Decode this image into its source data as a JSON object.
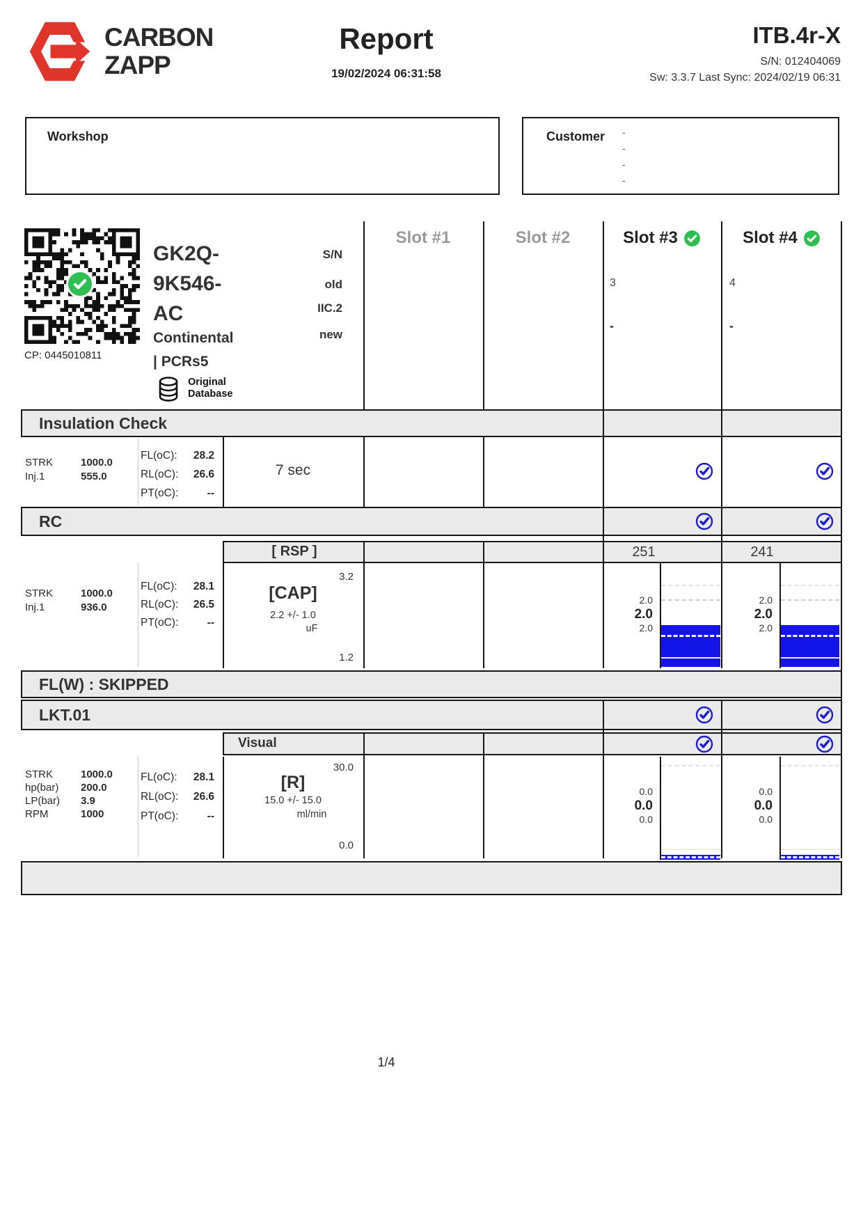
{
  "header": {
    "brand": [
      "CARBON",
      "ZAPP"
    ],
    "title": "Report",
    "datetime": "19/02/2024 06:31:58",
    "device": "ITB.4r-X",
    "serial": "S/N: 012404069",
    "sync": "Sw: 3.3.7 Last Sync: 2024/02/19 06:31"
  },
  "boxes": {
    "workshop_label": "Workshop",
    "customer_label": "Customer",
    "customer_dashes": [
      "-",
      "-",
      "-",
      "-"
    ]
  },
  "injector": {
    "cp": "CP: 0445010811",
    "part": [
      "GK2Q-",
      "9K546-",
      "AC"
    ],
    "brand": "Continental",
    "series": "| PCRs5",
    "db": [
      "Original",
      "Database"
    ],
    "labels": [
      "S/N",
      "old",
      "IIC.2",
      "new"
    ]
  },
  "slots": [
    {
      "label": "Slot #1",
      "active": false,
      "sn": "",
      "new": ""
    },
    {
      "label": "Slot #2",
      "active": false,
      "sn": "",
      "new": ""
    },
    {
      "label": "Slot #3",
      "active": true,
      "sn": "3",
      "new": "-"
    },
    {
      "label": "Slot #4",
      "active": true,
      "sn": "4",
      "new": "-"
    }
  ],
  "insulation": {
    "title": "Insulation Check",
    "params": [
      {
        "k": "STRK",
        "v": "1000.0"
      },
      {
        "k": "Inj.1",
        "v": "555.0"
      }
    ],
    "temps": [
      {
        "k": "FL(oC):",
        "v": "28.2"
      },
      {
        "k": "RL(oC):",
        "v": "26.6"
      },
      {
        "k": "PT(oC):",
        "v": "--"
      }
    ],
    "result": "7 sec"
  },
  "rc": {
    "title": "RC",
    "sub": "[ RSP ]",
    "rsp": {
      "slot3": "251",
      "slot4": "241"
    },
    "params": [
      {
        "k": "STRK",
        "v": "1000.0"
      },
      {
        "k": "Inj.1",
        "v": "936.0"
      }
    ],
    "temps": [
      {
        "k": "FL(oC):",
        "v": "28.1"
      },
      {
        "k": "RL(oC):",
        "v": "26.5"
      },
      {
        "k": "PT(oC):",
        "v": "--"
      }
    ],
    "meas": {
      "name": "[CAP]",
      "scale_max": "3.2",
      "scale_min": "1.2",
      "nominal": "2.2 +/- 1.0",
      "unit": "uF"
    },
    "results": {
      "slot3": {
        "max": "2.0",
        "value": "2.0",
        "min": "2.0"
      },
      "slot4": {
        "max": "2.0",
        "value": "2.0",
        "min": "2.0"
      }
    }
  },
  "flw": {
    "title": "FL(W) : SKIPPED"
  },
  "lkt": {
    "title": "LKT.01",
    "sub": "Visual",
    "params": [
      {
        "k": "STRK",
        "v": "1000.0"
      },
      {
        "k": "hp(bar)",
        "v": "200.0"
      },
      {
        "k": "LP(bar)",
        "v": "3.9"
      },
      {
        "k": "RPM",
        "v": "1000"
      }
    ],
    "temps": [
      {
        "k": "FL(oC):",
        "v": "28.1"
      },
      {
        "k": "RL(oC):",
        "v": "26.6"
      },
      {
        "k": "PT(oC):",
        "v": "--"
      }
    ],
    "meas": {
      "name": "[R]",
      "scale_max": "30.0",
      "scale_min": "0.0",
      "nominal": "15.0 +/- 15.0",
      "unit": "ml/min"
    },
    "results": {
      "slot3": {
        "max": "0.0",
        "value": "0.0",
        "min": "0.0"
      },
      "slot4": {
        "max": "0.0",
        "value": "0.0",
        "min": "0.0"
      }
    }
  },
  "page": "1/4",
  "colors": {
    "accent_red": "#e0352b",
    "check_green": "#2fbf51",
    "check_blue": "#1c1ccd",
    "bar_blue": "#1414e6",
    "section_gray": "#eaeaea"
  }
}
